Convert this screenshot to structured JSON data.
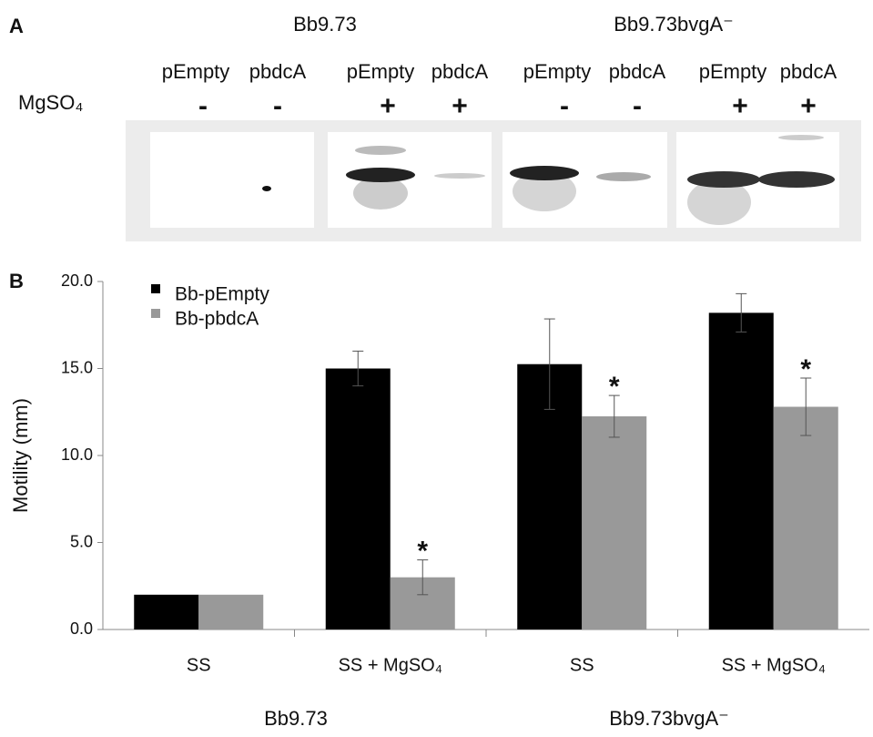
{
  "panel_a": {
    "panel_label": "A",
    "group_titles": [
      "Bb9.73",
      "Bb9.73bvgA⁻"
    ],
    "lanes": [
      "pEmpty",
      "pbdcA",
      "pEmpty",
      "pbdcA",
      "pEmpty",
      "pbdcA",
      "pEmpty",
      "pbdcA"
    ],
    "row_label": "MgSO₄",
    "signs": [
      "-",
      "-",
      "+",
      "+",
      "-",
      "-",
      "+",
      "+"
    ]
  },
  "chart_data": {
    "type": "bar",
    "panel_label": "B",
    "y_label": "Motility (mm)",
    "categories": [
      "SS",
      "SS + MgSO₄",
      "SS",
      "SS + MgSO₄"
    ],
    "groups": [
      "Bb9.73",
      "Bb9.73bvgA⁻"
    ],
    "series": [
      {
        "name": "Bb-pEmpty",
        "color": "#000000",
        "values": [
          2.0,
          15.0,
          15.25,
          18.2
        ],
        "errors": [
          null,
          1.0,
          2.6,
          1.1
        ]
      },
      {
        "name": "Bb-pbdcA",
        "color": "#999999",
        "values": [
          2.0,
          3.0,
          12.25,
          12.8
        ],
        "errors": [
          null,
          1.0,
          1.2,
          1.65
        ],
        "markers": [
          null,
          "*",
          "*",
          "*"
        ]
      }
    ],
    "ylim": [
      0,
      20
    ],
    "yticks": [
      {
        "value": 0,
        "label": "0.0"
      },
      {
        "value": 5,
        "label": "5.0"
      },
      {
        "value": 10,
        "label": "10.0"
      },
      {
        "value": 15,
        "label": "15.0"
      },
      {
        "value": 20,
        "label": "20.0"
      }
    ],
    "legend": "upper left",
    "grid": false
  }
}
